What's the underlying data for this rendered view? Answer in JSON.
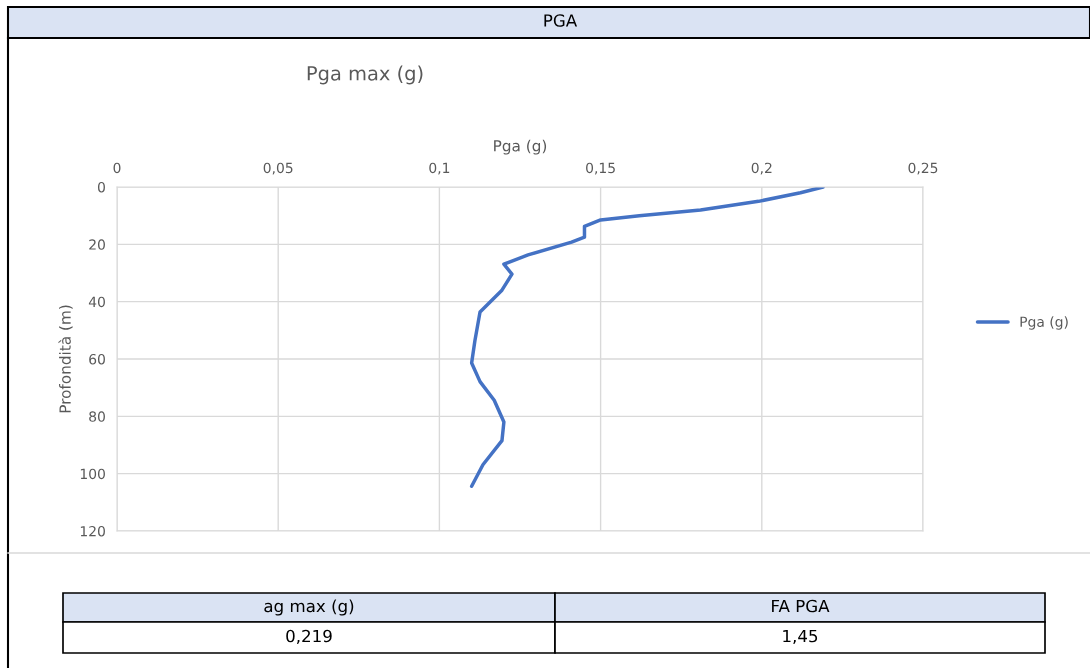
{
  "chart_data": {
    "type": "line",
    "title": "PGA",
    "subtitle": "Pga max (g)",
    "xlabel": "Pga (g)",
    "ylabel": "Profondità (m)",
    "xlim": [
      0,
      0.25
    ],
    "xticks": [
      0,
      {
        "value": 0.05,
        "label": "0,05"
      },
      {
        "value": 0.1,
        "label": "0,1"
      },
      {
        "value": 0.15,
        "label": "0,15"
      },
      {
        "value": 0.2,
        "label": "0,2"
      },
      {
        "value": 0.25,
        "label": "0,25"
      }
    ],
    "ylim": [
      120,
      0
    ],
    "yticks": [
      0,
      20,
      40,
      60,
      80,
      100,
      120
    ],
    "grid": true,
    "legend": "right",
    "marker": "none",
    "line_style": "solid",
    "series": [
      {
        "name": "Pga (g)",
        "color": "#4472c4",
        "x": [
          0.219,
          0.212,
          0.199,
          0.181,
          0.162,
          0.15,
          0.145,
          0.145,
          0.141,
          0.1275,
          0.12,
          0.1225,
          0.1194,
          0.1126,
          0.111,
          0.11,
          0.1126,
          0.117,
          0.12,
          0.1194,
          0.1135,
          0.11
        ],
        "values": [
          0,
          2,
          5,
          8,
          10,
          11.5,
          13.7,
          17.5,
          19.2,
          23.7,
          26.9,
          30.4,
          36,
          43.6,
          53.7,
          61.4,
          67.9,
          74.4,
          82,
          88.5,
          96.9,
          104.4
        ]
      }
    ],
    "annotations": [
      "ag max (g)",
      "FA PGA",
      "0,219",
      "1,45"
    ]
  }
}
